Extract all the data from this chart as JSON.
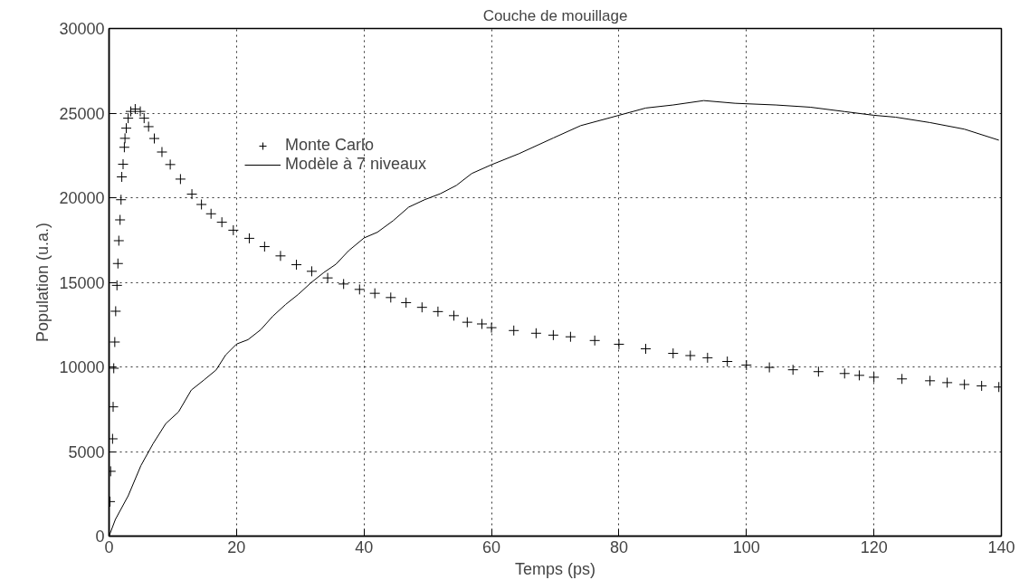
{
  "chart_data": {
    "type": "line",
    "title": "Couche de mouillage",
    "xlabel": "Temps (ps)",
    "ylabel": "Population (u.a.)",
    "xlim": [
      0,
      140
    ],
    "ylim": [
      0,
      30000
    ],
    "xticks": [
      0,
      20,
      40,
      60,
      80,
      100,
      120,
      140
    ],
    "yticks": [
      0,
      5000,
      10000,
      15000,
      20000,
      25000,
      30000
    ],
    "grid": true,
    "legend": "top left",
    "series": [
      {
        "name": "Monte Carlo",
        "type": "scatter",
        "marker": "cross",
        "color": "#000000",
        "x": [
          0.15,
          0.25,
          0.55,
          0.64,
          0.74,
          0.9,
          1.04,
          1.24,
          1.39,
          1.53,
          1.73,
          1.88,
          2.0,
          2.2,
          2.4,
          2.5,
          2.7,
          3.0,
          3.4,
          4.1,
          4.9,
          5.5,
          6.2,
          7.1,
          8.3,
          9.6,
          11.2,
          13.0,
          14.5,
          16.0,
          17.7,
          19.5,
          22.0,
          24.4,
          26.9,
          29.4,
          31.8,
          34.3,
          36.8,
          39.3,
          41.7,
          44.2,
          46.6,
          49.1,
          51.6,
          54.1,
          56.2,
          58.5,
          60,
          63.5,
          67,
          69.7,
          72.4,
          76.2,
          80,
          84.2,
          88.5,
          91.2,
          93.9,
          97.0,
          100,
          103.6,
          107.3,
          111.3,
          115.4,
          117.7,
          120,
          124.4,
          128.8,
          131.5,
          134.2,
          136.9,
          139.6
        ],
        "values": [
          2040,
          3830,
          5750,
          7640,
          9920,
          11470,
          13290,
          14820,
          16110,
          17460,
          18690,
          19880,
          21230,
          21980,
          22980,
          23510,
          24110,
          24700,
          25100,
          25240,
          25100,
          24700,
          24200,
          23500,
          22700,
          21960,
          21100,
          20210,
          19600,
          19050,
          18550,
          18080,
          17600,
          17110,
          16560,
          16040,
          15650,
          15260,
          14900,
          14580,
          14350,
          14100,
          13800,
          13520,
          13270,
          13030,
          12640,
          12540,
          12320,
          12150,
          11990,
          11880,
          11780,
          11560,
          11340,
          11070,
          10800,
          10670,
          10540,
          10320,
          10110,
          9970,
          9830,
          9720,
          9610,
          9500,
          9390,
          9290,
          9180,
          9070,
          8960,
          8880,
          8810
        ]
      },
      {
        "name": "Modèle à 7 niveaux",
        "line_style": "solid",
        "color": "#000000",
        "x": [
          0,
          1.0,
          3.0,
          5.0,
          6.9,
          8.9,
          10.9,
          12.9,
          14.9,
          16.8,
          18.3,
          20,
          21.8,
          23.8,
          25.7,
          27.7,
          29.7,
          31.7,
          33.7,
          35.6,
          37.6,
          40,
          42.1,
          44.6,
          47.0,
          49.5,
          52.0,
          54.5,
          56.9,
          60,
          64.3,
          69.7,
          74,
          80,
          84.2,
          88.5,
          93.3,
          98.2,
          104.6,
          110,
          115.4,
          120,
          123.4,
          128.8,
          134.2,
          139.6
        ],
        "values": [
          0,
          990,
          2380,
          4170,
          5460,
          6650,
          7340,
          8630,
          9230,
          9820,
          10710,
          11350,
          11610,
          12200,
          13000,
          13690,
          14290,
          14980,
          15580,
          16070,
          16870,
          17620,
          17960,
          18650,
          19440,
          19880,
          20240,
          20730,
          21430,
          21950,
          22600,
          23530,
          24260,
          24870,
          25300,
          25480,
          25740,
          25580,
          25480,
          25350,
          25090,
          24870,
          24760,
          24440,
          24050,
          23400
        ]
      }
    ]
  }
}
